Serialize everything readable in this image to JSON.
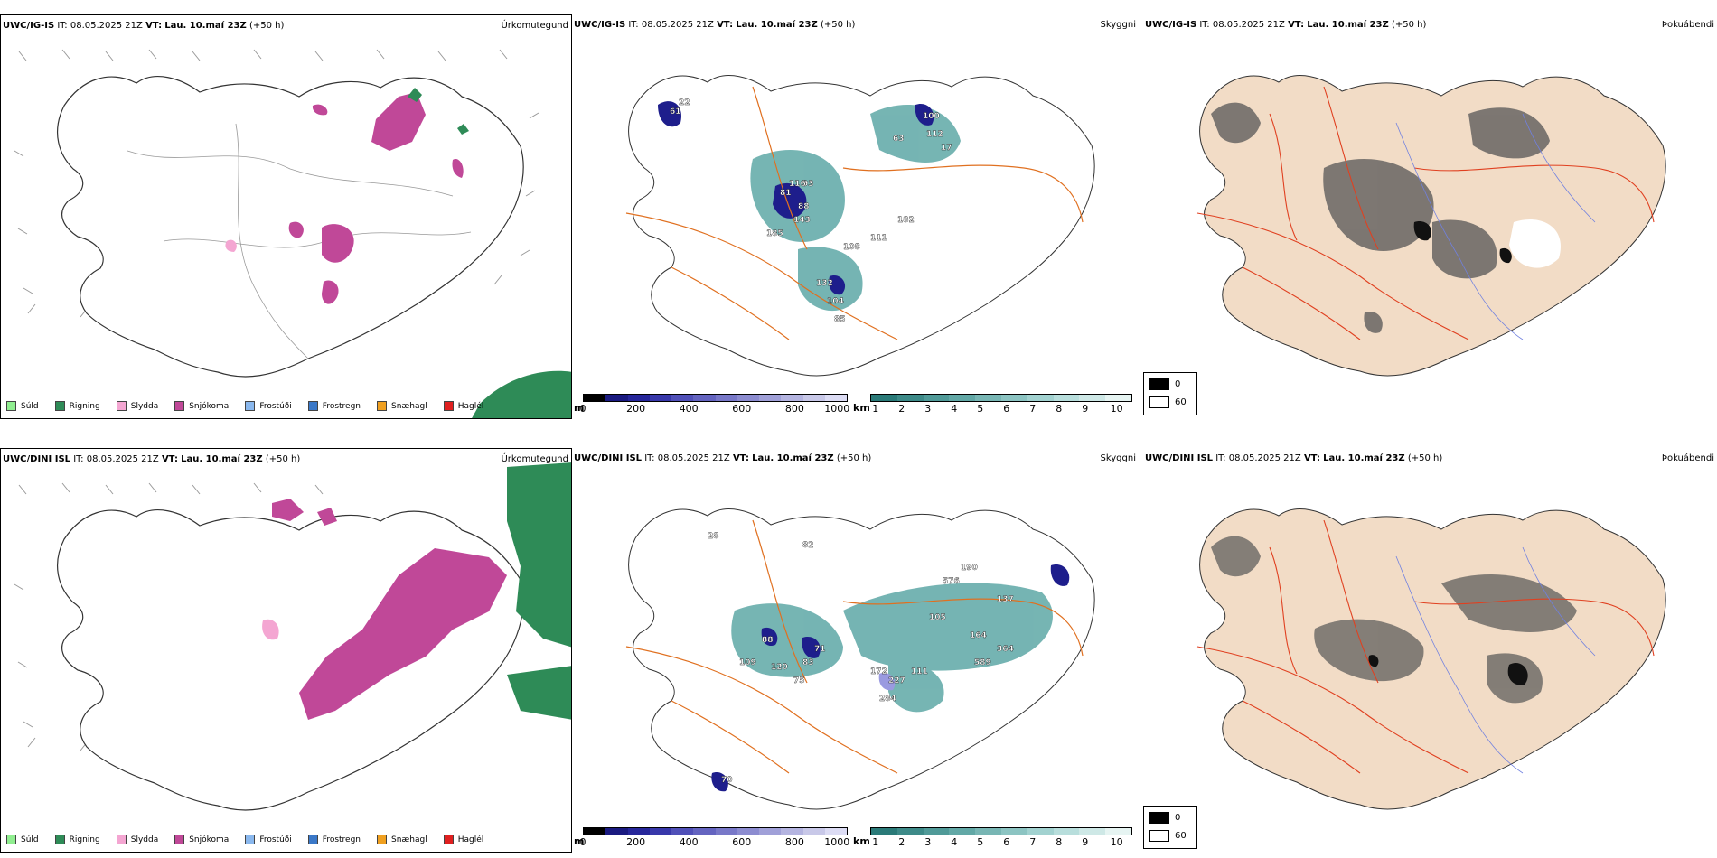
{
  "rows": [
    {
      "panels": [
        {
          "model": "UWC/IG-IS",
          "it_label": "IT:",
          "it_value": "08.05.2025 21Z",
          "vt_label": "VT:",
          "vt_value": "Lau. 10.maí 23Z",
          "lead": "(+50 h)",
          "product": "Úrkomutegund"
        },
        {
          "model": "UWC/IG-IS",
          "it_label": "IT:",
          "it_value": "08.05.2025 21Z",
          "vt_label": "VT:",
          "vt_value": "Lau. 10.maí 23Z",
          "lead": "(+50 h)",
          "product": "Skyggni"
        },
        {
          "model": "UWC/IG-IS",
          "it_label": "IT:",
          "it_value": "08.05.2025 21Z",
          "vt_label": "VT:",
          "vt_value": "Lau. 10.maí 23Z",
          "lead": "(+50 h)",
          "product": "Þokuábendi"
        }
      ],
      "visibility_labels": [
        "81",
        "93",
        "88",
        "185",
        "143",
        "108",
        "132",
        "100",
        "112",
        "63",
        "111",
        "182",
        "17",
        "22",
        "61",
        "104",
        "116",
        "85"
      ]
    },
    {
      "panels": [
        {
          "model": "UWC/DINI ISL",
          "it_label": "IT:",
          "it_value": "08.05.2025 21Z",
          "vt_label": "VT:",
          "vt_value": "Lau. 10.maí 23Z",
          "lead": "(+50 h)",
          "product": "Úrkomutegund"
        },
        {
          "model": "UWC/DINI ISL",
          "it_label": "IT:",
          "it_value": "08.05.2025 21Z",
          "vt_label": "VT:",
          "vt_value": "Lau. 10.maí 23Z",
          "lead": "(+50 h)",
          "product": "Skyggni"
        },
        {
          "model": "UWC/DINI ISL",
          "it_label": "IT:",
          "it_value": "08.05.2025 21Z",
          "vt_label": "VT:",
          "vt_value": "Lau. 10.maí 23Z",
          "lead": "(+50 h)",
          "product": "Þokuábendi"
        }
      ],
      "visibility_labels": [
        "88",
        "109",
        "120",
        "83",
        "75",
        "71",
        "172",
        "227",
        "284",
        "111",
        "105",
        "576",
        "190",
        "137",
        "364",
        "589",
        "164",
        "70",
        "82",
        "28"
      ]
    }
  ],
  "precip_legend": [
    {
      "label": "Súld",
      "color": "#90ee90"
    },
    {
      "label": "Rigning",
      "color": "#2e8b57"
    },
    {
      "label": "Slydda",
      "color": "#f4a6d2"
    },
    {
      "label": "Snjókoma",
      "color": "#c04898"
    },
    {
      "label": "Frostúði",
      "color": "#8ab8ee"
    },
    {
      "label": "Frostregn",
      "color": "#3a78c8"
    },
    {
      "label": "Snæhagl",
      "color": "#f0a020"
    },
    {
      "label": "Haglél",
      "color": "#e02020"
    }
  ],
  "cloud_base_scale": {
    "unit": "m",
    "ticks": [
      "0",
      "200",
      "400",
      "600",
      "800",
      "1000"
    ],
    "colors": [
      "#000000",
      "#1a1a80",
      "#26269a",
      "#3838aa",
      "#5050b8",
      "#6464c0",
      "#7878c8",
      "#8c8cd0",
      "#a0a0d8",
      "#b4b4e0",
      "#c8c8e8",
      "#dcdcf4"
    ]
  },
  "visibility_scale": {
    "unit": "km",
    "ticks": [
      "1",
      "2",
      "3",
      "4",
      "5",
      "6",
      "7",
      "8",
      "9",
      "10"
    ],
    "colors": [
      "#2a7a78",
      "#3d8a88",
      "#509a98",
      "#62a8a6",
      "#78b6b4",
      "#8cc4c2",
      "#a2d2d0",
      "#b8dedc",
      "#cee8e6",
      "#e6f4f2"
    ]
  },
  "fog_scale": {
    "labels": [
      "0",
      "60"
    ],
    "colors": [
      "#000000",
      "#ffffff"
    ]
  },
  "colors": {
    "precip_snow": "#c04898",
    "precip_rain": "#2e8b57",
    "precip_sleet": "#f4a6d2",
    "roads": "#e07020",
    "fog_land": "#f2dcc6",
    "fog_roads": "#e04020"
  }
}
